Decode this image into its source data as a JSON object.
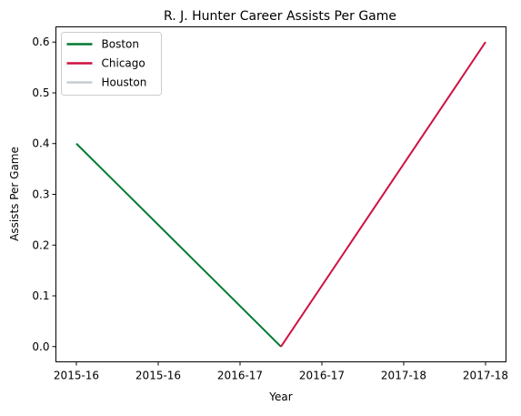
{
  "chart_data": {
    "type": "line",
    "title": "R. J. Hunter Career Assists Per Game",
    "xlabel": "Year",
    "ylabel": "Assists Per Game",
    "x_tick_labels": [
      "2015-16",
      "2015-16",
      "2016-17",
      "2016-17",
      "2017-18",
      "2017-18"
    ],
    "y_tick_labels": [
      "0.0",
      "0.1",
      "0.2",
      "0.3",
      "0.4",
      "0.5",
      "0.6"
    ],
    "y_ticks": [
      0.0,
      0.1,
      0.2,
      0.3,
      0.4,
      0.5,
      0.6
    ],
    "xlim": [
      -0.1,
      2.1
    ],
    "ylim": [
      -0.03,
      0.63
    ],
    "series": [
      {
        "name": "Boston",
        "color": "#007A33",
        "x": [
          0,
          1
        ],
        "y": [
          0.4,
          0.0
        ]
      },
      {
        "name": "Chicago",
        "color": "#CE1141",
        "x": [
          1,
          2
        ],
        "y": [
          0.0,
          0.6
        ]
      },
      {
        "name": "Houston",
        "color": "#C4CED4",
        "x": [],
        "y": []
      }
    ],
    "legend_position": "top-left",
    "grid": false
  }
}
